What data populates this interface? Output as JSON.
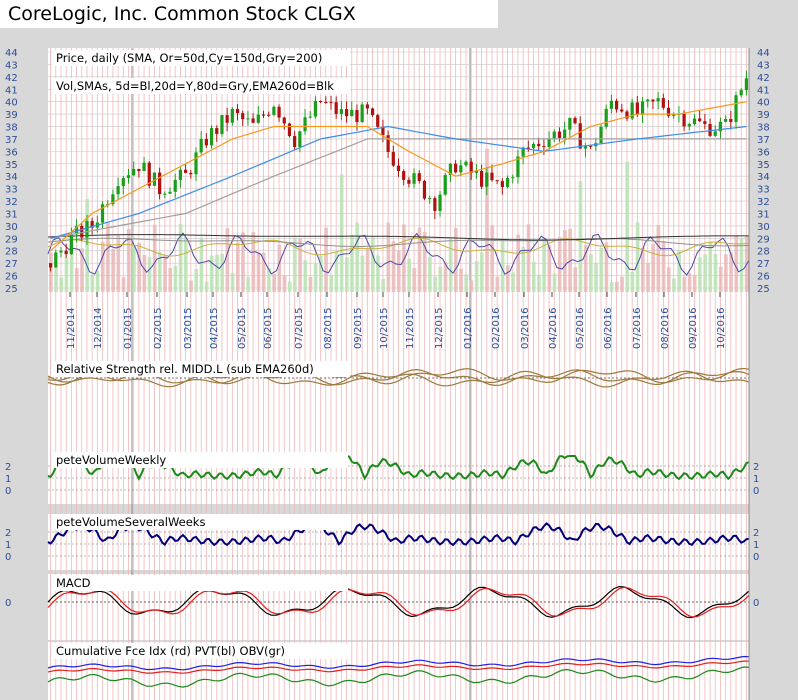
{
  "title": "CoreLogic, Inc. Common Stock CLGX",
  "colors": {
    "background": "#d8d8d8",
    "panel": "#ffffff",
    "grid_red": "#f0b8b8",
    "grid_gray": "#c8c8c8",
    "axis_blue": "#2a4f9a",
    "sma50": "#f39a1e",
    "sma150": "#3a8ee8",
    "sma200": "#a0a0a0",
    "up": "#1a9e1a",
    "down": "#b01010",
    "rs": "#9b7a3c",
    "weekly": "#1a8a1a",
    "several": "#00007a",
    "macd": "#000000",
    "signal": "#e02020",
    "fce": "#e02020",
    "pvt": "#2020e0",
    "obv": "#1a8a1a"
  },
  "chart_data": [
    {
      "type": "line",
      "panel": "price",
      "label_1": "Price, daily (SMA, Or=50d,Cy=150d,Gry=200)",
      "label_2": "Vol,SMAs, 5d=Bl,20d=Y,80d=Gry,EMA260d=Blk",
      "ylim": [
        25,
        44
      ],
      "y_ticks": [
        25,
        26,
        27,
        28,
        29,
        30,
        31,
        32,
        33,
        34,
        35,
        36,
        37,
        38,
        39,
        40,
        41,
        42,
        43,
        44
      ],
      "x_tick_labels": [
        "11/2014",
        "12/2014",
        "01/2015",
        "02/2015",
        "03/2015",
        "04/2015",
        "05/2015",
        "06/2015",
        "07/2015",
        "08/2015",
        "09/2015",
        "10/2015",
        "11/2015",
        "12/2015",
        "01/2016",
        "02/2016",
        "03/2016",
        "04/2016",
        "05/2016",
        "06/2016",
        "07/2016",
        "08/2016",
        "09/2016",
        "10/2016"
      ],
      "price_anchors": [
        [
          0,
          27
        ],
        [
          4,
          29
        ],
        [
          8,
          30
        ],
        [
          13,
          34
        ],
        [
          17,
          35
        ],
        [
          21,
          33
        ],
        [
          26,
          34
        ],
        [
          30,
          37
        ],
        [
          35,
          39
        ],
        [
          39,
          38
        ],
        [
          43,
          40
        ],
        [
          47,
          37
        ],
        [
          52,
          40
        ],
        [
          56,
          39
        ],
        [
          61,
          39
        ],
        [
          65,
          36
        ],
        [
          69,
          34
        ],
        [
          74,
          32
        ],
        [
          78,
          35
        ],
        [
          82,
          34
        ],
        [
          87,
          33
        ],
        [
          91,
          36
        ],
        [
          95,
          37
        ],
        [
          100,
          38
        ],
        [
          104,
          36
        ],
        [
          108,
          40
        ],
        [
          113,
          39
        ],
        [
          117,
          40
        ],
        [
          121,
          39
        ],
        [
          126,
          38
        ],
        [
          130,
          38
        ],
        [
          134,
          42
        ]
      ],
      "sma50_anchors": [
        [
          0,
          28
        ],
        [
          8,
          31
        ],
        [
          17,
          33
        ],
        [
          26,
          35
        ],
        [
          35,
          37
        ],
        [
          43,
          38
        ],
        [
          52,
          38
        ],
        [
          61,
          38
        ],
        [
          69,
          36
        ],
        [
          78,
          34
        ],
        [
          87,
          35
        ],
        [
          95,
          36
        ],
        [
          104,
          38
        ],
        [
          113,
          39
        ],
        [
          121,
          39
        ],
        [
          134,
          40
        ]
      ],
      "sma150_anchors": [
        [
          0,
          29
        ],
        [
          17,
          31
        ],
        [
          35,
          34
        ],
        [
          52,
          37
        ],
        [
          65,
          38
        ],
        [
          78,
          37
        ],
        [
          95,
          36
        ],
        [
          113,
          37
        ],
        [
          134,
          38
        ]
      ],
      "sma200_anchors": [
        [
          0,
          29
        ],
        [
          26,
          31
        ],
        [
          43,
          34
        ],
        [
          61,
          37
        ],
        [
          78,
          37
        ],
        [
          95,
          37
        ],
        [
          113,
          37
        ],
        [
          134,
          37
        ]
      ]
    },
    {
      "type": "line",
      "panel": "relative-strength",
      "label": "Relative Strength rel. MIDD.L (sub EMA260d)"
    },
    {
      "type": "line",
      "panel": "pete-volume-weekly",
      "label": "peteVolumeWeekly",
      "y_ticks": [
        "0",
        "1",
        "2"
      ]
    },
    {
      "type": "line",
      "panel": "pete-volume-several-weeks",
      "label": "peteVolumeSeveralWeeks",
      "y_ticks": [
        "0",
        "1",
        "2"
      ]
    },
    {
      "type": "line",
      "panel": "macd",
      "label": "MACD",
      "y_ticks": [
        "0"
      ]
    },
    {
      "type": "line",
      "panel": "cumulative",
      "label": "Cumulative Fce Idx (rd) PVT(bl) OBV(gr)"
    }
  ]
}
